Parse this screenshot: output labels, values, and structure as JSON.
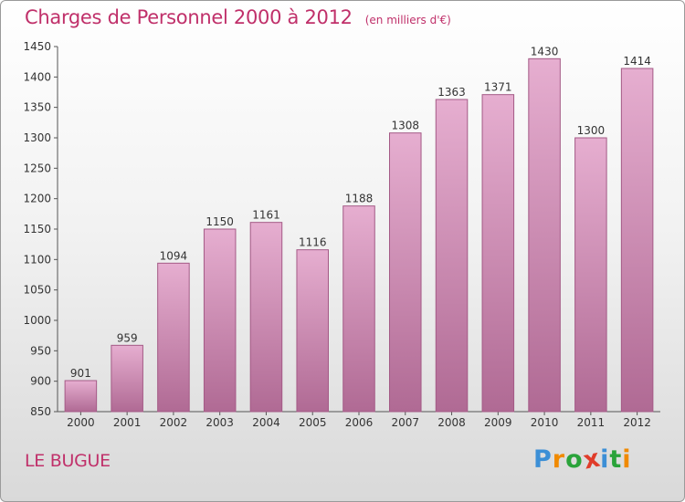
{
  "chart_data": {
    "type": "bar",
    "title": "Charges de Personnel 2000 à 2012",
    "subtitle": "(en milliers d'€)",
    "categories": [
      "2000",
      "2001",
      "2002",
      "2003",
      "2004",
      "2005",
      "2006",
      "2007",
      "2008",
      "2009",
      "2010",
      "2011",
      "2012"
    ],
    "values": [
      901,
      959,
      1094,
      1150,
      1161,
      1116,
      1188,
      1308,
      1363,
      1371,
      1430,
      1300,
      1414
    ],
    "ylim": [
      850,
      1450
    ],
    "yticks": [
      850,
      900,
      950,
      1000,
      1050,
      1100,
      1150,
      1200,
      1250,
      1300,
      1350,
      1400,
      1450
    ],
    "grid": false,
    "bar_color": "#c0709e",
    "title_color": "#c0306a"
  },
  "location": "LE BUGUE",
  "logo": {
    "text": "Proxiti",
    "letters": [
      "P",
      "r",
      "o",
      "x",
      "i",
      "t",
      "i"
    ],
    "colors": [
      "#3c8fd6",
      "#f08a00",
      "#2aa33a",
      "#e03c2a",
      "#3c8fd6",
      "#2aa33a",
      "#f08a00"
    ]
  }
}
